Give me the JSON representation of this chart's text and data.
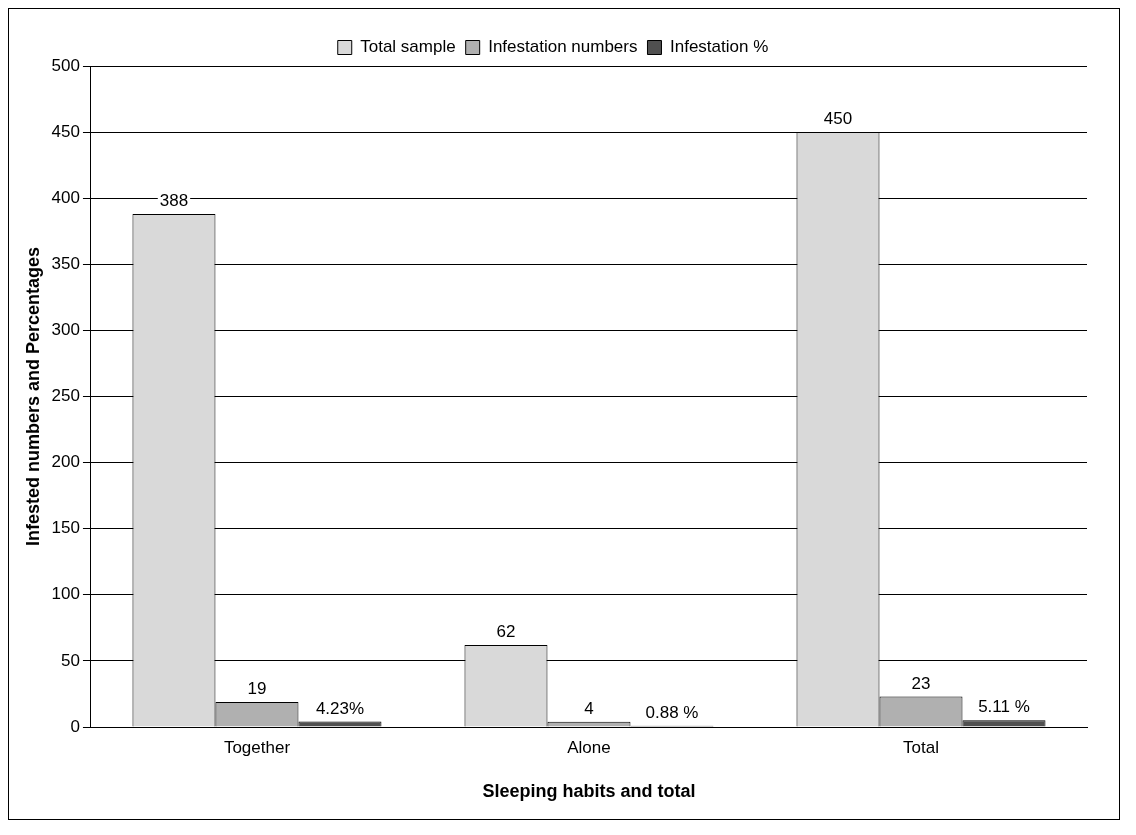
{
  "chart_data": {
    "type": "bar",
    "xlabel": "Sleeping habits and total",
    "ylabel": "Infested numbers and Percentages",
    "categories": [
      "Together",
      "Alone",
      "Total"
    ],
    "series": [
      {
        "name": "Total sample",
        "color": "#d9d9d9",
        "values": [
          388,
          62,
          450
        ],
        "value_labels": [
          "388",
          "62",
          "450"
        ]
      },
      {
        "name": "Infestation numbers",
        "color": "#b0b0b0",
        "values": [
          19,
          4,
          23
        ],
        "value_labels": [
          "19",
          "4",
          "23"
        ]
      },
      {
        "name": "Infestation %",
        "color": "#505050",
        "values": [
          4.23,
          0.88,
          5.11
        ],
        "value_labels": [
          "4.23%",
          "0.88 %",
          "5.11 %"
        ]
      }
    ],
    "ylim": [
      0,
      500
    ],
    "yticks": [
      0,
      50,
      100,
      150,
      200,
      250,
      300,
      350,
      400,
      450,
      500
    ],
    "grid": "y",
    "legend": "top"
  }
}
